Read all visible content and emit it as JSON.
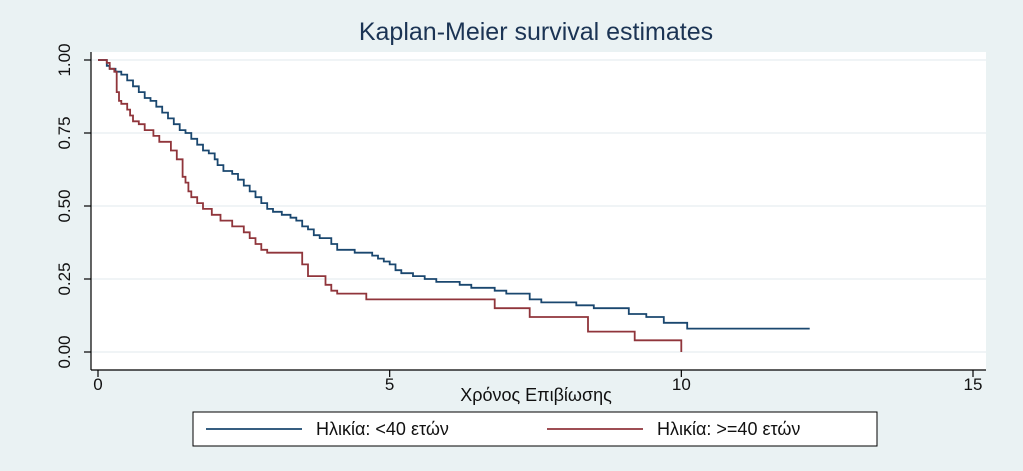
{
  "chart_data": {
    "type": "line",
    "title": "Kaplan-Meier survival estimates",
    "xlabel": "Χρόνος Επιβίωσης",
    "ylabel": "",
    "xlim": [
      0,
      15
    ],
    "ylim": [
      0,
      1
    ],
    "x_ticks": [
      "0",
      "5",
      "10",
      "15"
    ],
    "y_ticks": [
      "0.00",
      "0.25",
      "0.50",
      "0.75",
      "1.00"
    ],
    "grid": true,
    "legend_position": "bottom",
    "series": [
      {
        "name": "Ηλικία: <40 ετών",
        "color": "#1a476f",
        "step": true,
        "points": [
          [
            0,
            1.0
          ],
          [
            0.12,
            1.0
          ],
          [
            0.15,
            0.98
          ],
          [
            0.2,
            0.97
          ],
          [
            0.3,
            0.96
          ],
          [
            0.4,
            0.95
          ],
          [
            0.5,
            0.93
          ],
          [
            0.6,
            0.91
          ],
          [
            0.7,
            0.89
          ],
          [
            0.8,
            0.87
          ],
          [
            0.9,
            0.86
          ],
          [
            1.0,
            0.84
          ],
          [
            1.1,
            0.82
          ],
          [
            1.2,
            0.8
          ],
          [
            1.3,
            0.78
          ],
          [
            1.4,
            0.76
          ],
          [
            1.5,
            0.75
          ],
          [
            1.6,
            0.73
          ],
          [
            1.7,
            0.71
          ],
          [
            1.8,
            0.69
          ],
          [
            1.9,
            0.68
          ],
          [
            2.0,
            0.66
          ],
          [
            2.05,
            0.64
          ],
          [
            2.15,
            0.62
          ],
          [
            2.3,
            0.61
          ],
          [
            2.4,
            0.59
          ],
          [
            2.5,
            0.57
          ],
          [
            2.6,
            0.55
          ],
          [
            2.7,
            0.53
          ],
          [
            2.8,
            0.51
          ],
          [
            2.9,
            0.49
          ],
          [
            3.0,
            0.48
          ],
          [
            3.15,
            0.47
          ],
          [
            3.3,
            0.46
          ],
          [
            3.4,
            0.45
          ],
          [
            3.5,
            0.43
          ],
          [
            3.6,
            0.42
          ],
          [
            3.7,
            0.4
          ],
          [
            3.8,
            0.39
          ],
          [
            4.0,
            0.37
          ],
          [
            4.1,
            0.35
          ],
          [
            4.3,
            0.35
          ],
          [
            4.4,
            0.34
          ],
          [
            4.7,
            0.33
          ],
          [
            4.8,
            0.32
          ],
          [
            4.9,
            0.31
          ],
          [
            5.0,
            0.3
          ],
          [
            5.1,
            0.28
          ],
          [
            5.2,
            0.27
          ],
          [
            5.4,
            0.26
          ],
          [
            5.6,
            0.25
          ],
          [
            5.8,
            0.24
          ],
          [
            6.2,
            0.23
          ],
          [
            6.4,
            0.22
          ],
          [
            6.8,
            0.21
          ],
          [
            7.0,
            0.2
          ],
          [
            7.4,
            0.18
          ],
          [
            7.6,
            0.17
          ],
          [
            8.2,
            0.16
          ],
          [
            8.5,
            0.15
          ],
          [
            9.1,
            0.13
          ],
          [
            9.4,
            0.12
          ],
          [
            9.7,
            0.1
          ],
          [
            10.0,
            0.1
          ],
          [
            10.1,
            0.08
          ],
          [
            12.2,
            0.08
          ]
        ]
      },
      {
        "name": "Ηλικία: >=40 ετών",
        "color": "#90353b",
        "step": true,
        "points": [
          [
            0,
            1.0
          ],
          [
            0.1,
            1.0
          ],
          [
            0.15,
            0.99
          ],
          [
            0.2,
            0.97
          ],
          [
            0.28,
            0.96
          ],
          [
            0.32,
            0.89
          ],
          [
            0.36,
            0.86
          ],
          [
            0.4,
            0.85
          ],
          [
            0.5,
            0.83
          ],
          [
            0.55,
            0.81
          ],
          [
            0.6,
            0.79
          ],
          [
            0.7,
            0.78
          ],
          [
            0.8,
            0.76
          ],
          [
            0.95,
            0.74
          ],
          [
            1.05,
            0.72
          ],
          [
            1.25,
            0.69
          ],
          [
            1.35,
            0.66
          ],
          [
            1.45,
            0.6
          ],
          [
            1.5,
            0.58
          ],
          [
            1.55,
            0.55
          ],
          [
            1.6,
            0.53
          ],
          [
            1.7,
            0.51
          ],
          [
            1.8,
            0.49
          ],
          [
            1.95,
            0.47
          ],
          [
            2.1,
            0.45
          ],
          [
            2.3,
            0.43
          ],
          [
            2.5,
            0.41
          ],
          [
            2.6,
            0.39
          ],
          [
            2.7,
            0.37
          ],
          [
            2.8,
            0.35
          ],
          [
            2.9,
            0.34
          ],
          [
            3.4,
            0.34
          ],
          [
            3.5,
            0.3
          ],
          [
            3.6,
            0.26
          ],
          [
            3.9,
            0.23
          ],
          [
            4.0,
            0.21
          ],
          [
            4.1,
            0.2
          ],
          [
            4.6,
            0.18
          ],
          [
            6.7,
            0.18
          ],
          [
            6.8,
            0.15
          ],
          [
            7.3,
            0.15
          ],
          [
            7.4,
            0.12
          ],
          [
            8.3,
            0.12
          ],
          [
            8.4,
            0.07
          ],
          [
            9.1,
            0.07
          ],
          [
            9.2,
            0.04
          ],
          [
            10.0,
            0.04
          ],
          [
            10.0,
            0.0
          ]
        ]
      }
    ]
  }
}
